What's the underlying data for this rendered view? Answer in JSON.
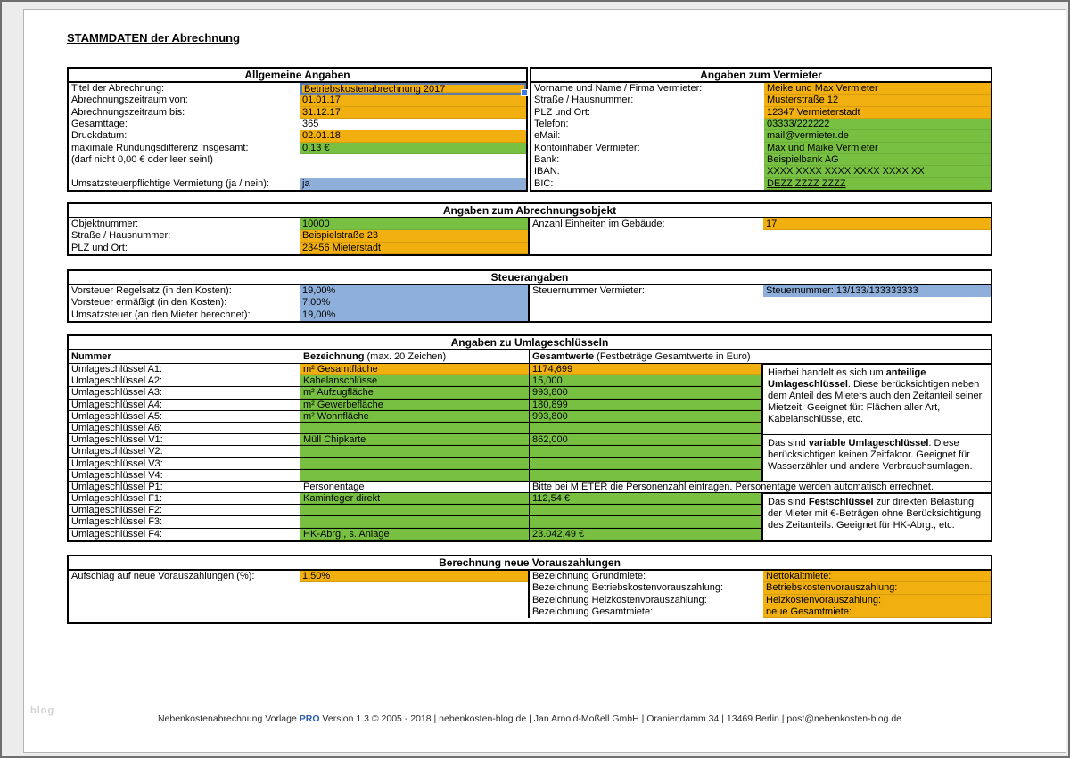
{
  "page": {
    "title": "STAMMDATEN der Abrechnung",
    "watermark": "blog",
    "footer": {
      "pre": "Nebenkostenabrechnung Vorlage ",
      "pro": "PRO",
      "post": " Version 1.3 © 2005 - 2018 | nebenkosten-blog.de | Jan Arnold-Moßell GmbH | Oraniendamm 34 | 13469 Berlin | post@nebenkosten-blog.de"
    }
  },
  "colors": {
    "cell_orange": "#F1AF10",
    "cell_green": "#77C041",
    "cell_blue": "#8DAFDA",
    "pro_accent": "#2A5DB0",
    "selection_handle": "#3E79E8"
  },
  "sections": {
    "allgemein": {
      "title": "Allgemeine Angaben",
      "rows": [
        {
          "label": "Titel der Abrechnung:",
          "value": "Betriebskostenabrechnung 2017",
          "fill": "orange",
          "selected": true
        },
        {
          "label": "Abrechnungszeitraum von:",
          "value": "01.01.17",
          "fill": "orange"
        },
        {
          "label": "Abrechnungszeitraum bis:",
          "value": "31.12.17",
          "fill": "orange"
        },
        {
          "label": "Gesamttage:",
          "value": "365",
          "fill": "none"
        },
        {
          "label": "Druckdatum:",
          "value": "02.01.18",
          "fill": "orange"
        },
        {
          "label": "maximale Rundungsdifferenz insgesamt:",
          "value": "0,13 €",
          "fill": "green"
        },
        {
          "label": "(darf nicht 0,00 € oder leer sein!)",
          "value": "",
          "fill": "none"
        },
        {
          "label": "",
          "value": "",
          "fill": "none"
        },
        {
          "label": "Umsatzsteuerpflichtige Vermietung (ja / nein):",
          "value": "ja",
          "fill": "blue"
        }
      ]
    },
    "vermieter": {
      "title": "Angaben zum Vermieter",
      "rows": [
        {
          "label": "Vorname und Name / Firma Vermieter:",
          "value": "Meike und Max Vermieter",
          "fill": "orange"
        },
        {
          "label": "Straße / Hausnummer:",
          "value": "Musterstraße 12",
          "fill": "orange"
        },
        {
          "label": "PLZ und Ort:",
          "value": "12347 Vermieterstadt",
          "fill": "orange"
        },
        {
          "label": "Telefon:",
          "value": "03333/222222",
          "fill": "green"
        },
        {
          "label": "eMail:",
          "value": "mail@vermieter.de",
          "fill": "green"
        },
        {
          "label": "Kontoinhaber Vermieter:",
          "value": "Max und Maike Vermieter",
          "fill": "green"
        },
        {
          "label": "Bank:",
          "value": "Beispielbank AG",
          "fill": "green"
        },
        {
          "label": "IBAN:",
          "value": "XXXX XXXX XXXX XXXX XXXX XX",
          "fill": "green"
        },
        {
          "label": "BIC:",
          "value": "DEZZ ZZZZ ZZZZ",
          "fill": "green"
        }
      ]
    },
    "objekt": {
      "title": "Angaben zum Abrechnungsobjekt",
      "left": [
        {
          "label": "Objektnummer:",
          "value": "10000",
          "fill": "green"
        },
        {
          "label": "Straße / Hausnummer:",
          "value": "Beispielstraße 23",
          "fill": "orange"
        },
        {
          "label": "PLZ und Ort:",
          "value": "23456 Mieterstadt",
          "fill": "orange"
        }
      ],
      "right": [
        {
          "label": "Anzahl Einheiten im Gebäude:",
          "value": "17",
          "fill": "orange"
        }
      ]
    },
    "steuer": {
      "title": "Steuerangaben",
      "left": [
        {
          "label": "Vorsteuer Regelsatz (in den Kosten):",
          "value": "19,00%",
          "fill": "blue"
        },
        {
          "label": "Vorsteuer ermäßigt (in den Kosten):",
          "value": "7,00%",
          "fill": "blue"
        },
        {
          "label": "Umsatzsteuer (an den Mieter berechnet):",
          "value": "19,00%",
          "fill": "blue"
        }
      ],
      "right": [
        {
          "label": "Steuernummer Vermieter:",
          "value": "Steuernummer: 13/133/133333333",
          "fill": "blue"
        }
      ]
    },
    "umlage": {
      "title": "Angaben zu Umlageschlüsseln",
      "columns": {
        "nummer": "Nummer",
        "bez_bold": "Bezeichnung",
        "bez_rest": " (max. 20 Zeichen)",
        "wert_bold": "Gesamtwerte",
        "wert_rest": " (Festbeträge Gesamtwerte in Euro)"
      },
      "rows": [
        {
          "label": "Umlageschlüssel A1:",
          "bez": "m² Gesamtfläche",
          "wert": "1174,699"
        },
        {
          "label": "Umlageschlüssel A2:",
          "bez": "Kabelanschlüsse",
          "wert": "15,000"
        },
        {
          "label": "Umlageschlüssel A3:",
          "bez": "m² Aufzugfläche",
          "wert": "993,800"
        },
        {
          "label": "Umlageschlüssel A4:",
          "bez": "m² Gewerbefläche",
          "wert": "180,899"
        },
        {
          "label": "Umlageschlüssel A5:",
          "bez": "m² Wohnfläche",
          "wert": "993,800"
        },
        {
          "label": "Umlageschlüssel A6:",
          "bez": "",
          "wert": ""
        },
        {
          "label": "Umlageschlüssel V1:",
          "bez": "Müll Chipkarte",
          "wert": "862,000"
        },
        {
          "label": "Umlageschlüssel V2:",
          "bez": "",
          "wert": ""
        },
        {
          "label": "Umlageschlüssel V3:",
          "bez": "",
          "wert": ""
        },
        {
          "label": "Umlageschlüssel V4:",
          "bez": "",
          "wert": ""
        },
        {
          "label": "Umlageschlüssel P1:",
          "bez": "Personentage",
          "note": "Bitte bei MIETER die Personenzahl eintragen. Personentage werden automatisch errechnet."
        },
        {
          "label": "Umlageschlüssel F1:",
          "bez": "Kaminfeger direkt",
          "wert": "112,54 €"
        },
        {
          "label": "Umlageschlüssel F2:",
          "bez": "",
          "wert": ""
        },
        {
          "label": "Umlageschlüssel F3:",
          "bez": "",
          "wert": ""
        },
        {
          "label": "Umlageschlüssel F4:",
          "bez": "HK-Abrg., s. Anlage",
          "wert": "23.042,49 €"
        }
      ],
      "notes": [
        {
          "pre": "Hierbei handelt es sich um ",
          "bold": "anteilige Umlageschlüssel",
          "post": ". Diese berücksichtigen neben dem Anteil des Mieters auch den Zeitanteil seiner Mietzeit. Geeignet für: Flächen aller Art, Kabelanschlüsse, etc."
        },
        {
          "pre": "Das sind ",
          "bold": "variable Umlageschlüssel",
          "post": ". Diese berücksichtigen keinen Zeitfaktor. Geeignet für Wasserzähler und andere Verbrauchsumlagen."
        },
        {
          "pre": "Das sind ",
          "bold": "Festschlüssel",
          "post": " zur direkten Belastung der Mieter mit €-Beträgen ohne Berücksichtigung des Zeitanteils. Geeignet für HK-Abrg., etc."
        }
      ]
    },
    "voraus": {
      "title": "Berechnung neue Vorauszahlungen",
      "left": [
        {
          "label": "Aufschlag auf neue Vorauszahlungen (%):",
          "value": "1,50%",
          "fill": "orange"
        }
      ],
      "right": [
        {
          "label": "Bezeichnung Grundmiete:",
          "value": "Nettokaltmiete:",
          "fill": "orange"
        },
        {
          "label": "Bezeichnung Betriebskostenvorauszahlung:",
          "value": "Betriebskostenvorauszahlung:",
          "fill": "orange"
        },
        {
          "label": "Bezeichnung Heizkostenvorauszahlung:",
          "value": "Heizkostenvorauszahlung:",
          "fill": "orange"
        },
        {
          "label": "Bezeichnung Gesamtmiete:",
          "value": "neue Gesamtmiete:",
          "fill": "orange"
        }
      ]
    }
  }
}
